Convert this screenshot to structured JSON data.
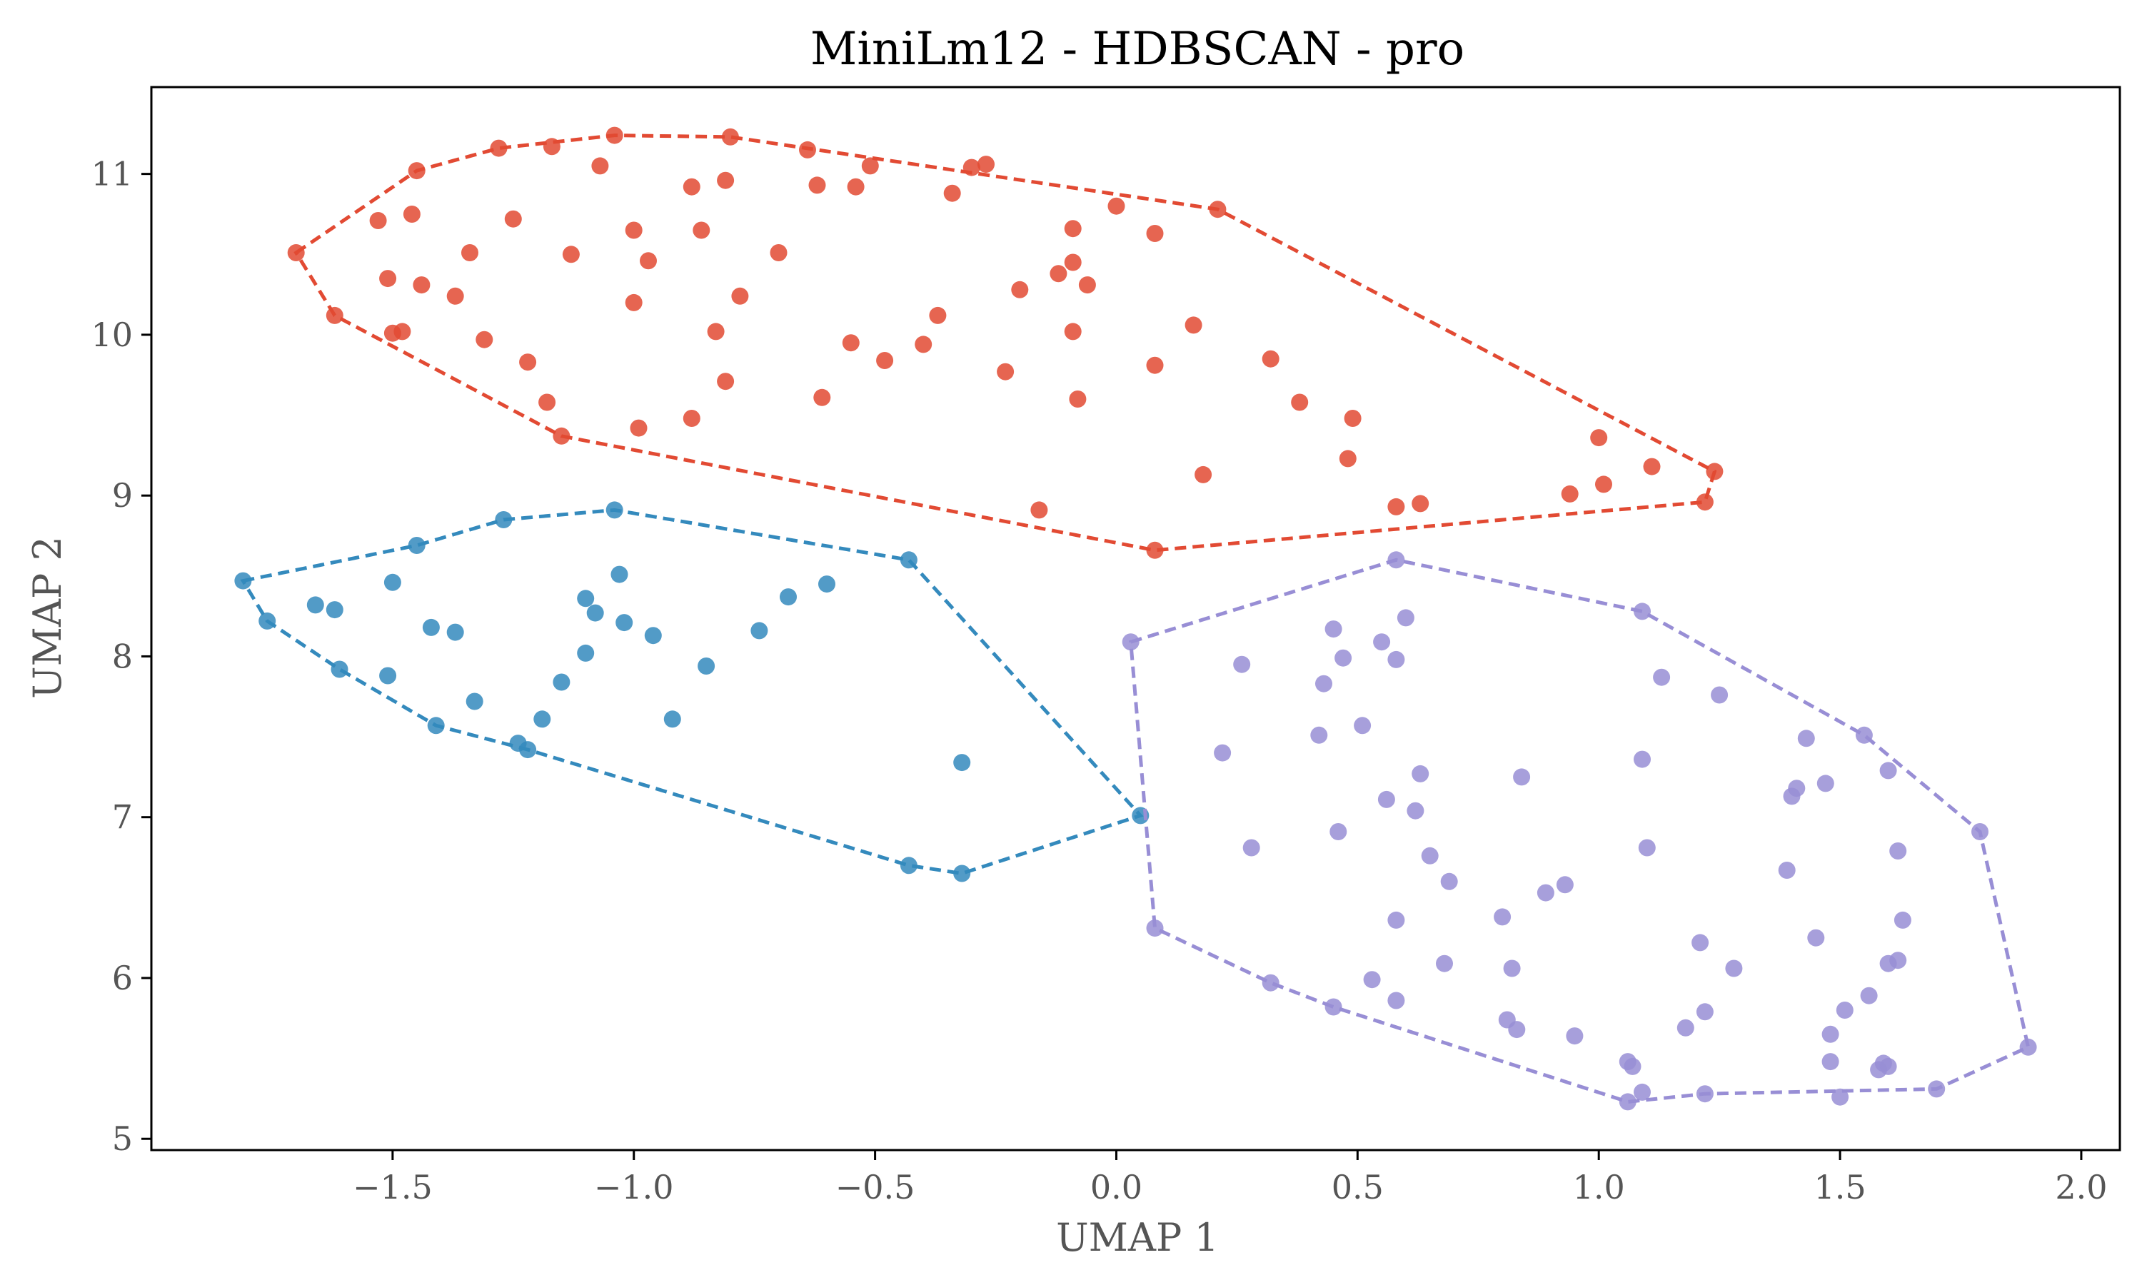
{
  "chart_data": {
    "type": "scatter",
    "title": "MiniLm12 - HDBSCAN - pro",
    "xlabel": "UMAP 1",
    "ylabel": "UMAP 2",
    "xlim": [
      -2.0,
      2.08
    ],
    "ylim": [
      4.93,
      11.54
    ],
    "xticks": [
      -1.5,
      -1.0,
      -0.5,
      0.0,
      0.5,
      1.0,
      1.5,
      2.0
    ],
    "xtick_labels": [
      "−1.5",
      "−1.0",
      "−0.5",
      "0.0",
      "0.5",
      "1.0",
      "1.5",
      "2.0"
    ],
    "yticks": [
      5,
      6,
      7,
      8,
      9,
      10,
      11
    ],
    "ytick_labels": [
      "5",
      "6",
      "7",
      "8",
      "9",
      "10",
      "11"
    ],
    "grid": false,
    "legend": "none",
    "series": [
      {
        "color": "#e24a33",
        "hull": [
          [
            -1.7,
            10.51
          ],
          [
            -1.45,
            11.02
          ],
          [
            -1.28,
            11.16
          ],
          [
            -1.04,
            11.24
          ],
          [
            -0.8,
            11.23
          ],
          [
            0.21,
            10.78
          ],
          [
            1.24,
            9.15
          ],
          [
            1.22,
            8.96
          ],
          [
            0.08,
            8.66
          ],
          [
            -1.15,
            9.37
          ],
          [
            -1.62,
            10.12
          ]
        ],
        "points": [
          [
            -1.7,
            10.51
          ],
          [
            -1.62,
            10.12
          ],
          [
            -1.53,
            10.71
          ],
          [
            -1.51,
            10.35
          ],
          [
            -1.5,
            10.01
          ],
          [
            -1.48,
            10.02
          ],
          [
            -1.46,
            10.75
          ],
          [
            -1.45,
            11.02
          ],
          [
            -1.44,
            10.31
          ],
          [
            -1.37,
            10.24
          ],
          [
            -1.34,
            10.51
          ],
          [
            -1.31,
            9.97
          ],
          [
            -1.28,
            11.16
          ],
          [
            -1.25,
            10.72
          ],
          [
            -1.22,
            9.83
          ],
          [
            -1.18,
            9.58
          ],
          [
            -1.17,
            11.17
          ],
          [
            -1.15,
            9.37
          ],
          [
            -1.13,
            10.5
          ],
          [
            -1.07,
            11.05
          ],
          [
            -1.04,
            11.24
          ],
          [
            -1.0,
            10.65
          ],
          [
            -1.0,
            10.2
          ],
          [
            -0.99,
            9.42
          ],
          [
            -0.97,
            10.46
          ],
          [
            -0.88,
            10.92
          ],
          [
            -0.88,
            9.48
          ],
          [
            -0.86,
            10.65
          ],
          [
            -0.83,
            10.02
          ],
          [
            -0.81,
            10.96
          ],
          [
            -0.81,
            9.71
          ],
          [
            -0.8,
            11.23
          ],
          [
            -0.78,
            10.24
          ],
          [
            -0.7,
            10.51
          ],
          [
            -0.64,
            11.15
          ],
          [
            -0.62,
            10.93
          ],
          [
            -0.61,
            9.61
          ],
          [
            -0.55,
            9.95
          ],
          [
            -0.54,
            10.92
          ],
          [
            -0.51,
            11.05
          ],
          [
            -0.48,
            9.84
          ],
          [
            -0.4,
            9.94
          ],
          [
            -0.37,
            10.12
          ],
          [
            -0.34,
            10.88
          ],
          [
            -0.3,
            11.04
          ],
          [
            -0.27,
            11.06
          ],
          [
            -0.23,
            9.77
          ],
          [
            -0.2,
            10.28
          ],
          [
            -0.16,
            8.91
          ],
          [
            -0.12,
            10.38
          ],
          [
            -0.09,
            10.66
          ],
          [
            -0.09,
            10.45
          ],
          [
            -0.09,
            10.02
          ],
          [
            -0.08,
            9.6
          ],
          [
            -0.06,
            10.31
          ],
          [
            0.0,
            10.8
          ],
          [
            0.08,
            10.63
          ],
          [
            0.08,
            9.81
          ],
          [
            0.08,
            8.66
          ],
          [
            0.16,
            10.06
          ],
          [
            0.18,
            9.13
          ],
          [
            0.21,
            10.78
          ],
          [
            0.32,
            9.85
          ],
          [
            0.38,
            9.58
          ],
          [
            0.48,
            9.23
          ],
          [
            0.49,
            9.48
          ],
          [
            0.58,
            8.93
          ],
          [
            0.63,
            8.95
          ],
          [
            0.94,
            9.01
          ],
          [
            1.0,
            9.36
          ],
          [
            1.01,
            9.07
          ],
          [
            1.11,
            9.18
          ],
          [
            1.22,
            8.96
          ],
          [
            1.24,
            9.15
          ]
        ]
      },
      {
        "color": "#348abd",
        "hull": [
          [
            -1.81,
            8.47
          ],
          [
            -1.45,
            8.69
          ],
          [
            -1.27,
            8.85
          ],
          [
            -1.04,
            8.91
          ],
          [
            -0.43,
            8.6
          ],
          [
            0.05,
            7.01
          ],
          [
            -0.32,
            6.65
          ],
          [
            -0.43,
            6.7
          ],
          [
            -1.22,
            7.42
          ],
          [
            -1.41,
            7.57
          ],
          [
            -1.61,
            7.92
          ],
          [
            -1.76,
            8.22
          ]
        ],
        "points": [
          [
            -1.81,
            8.47
          ],
          [
            -1.76,
            8.22
          ],
          [
            -1.66,
            8.32
          ],
          [
            -1.62,
            8.29
          ],
          [
            -1.61,
            7.92
          ],
          [
            -1.5,
            8.46
          ],
          [
            -1.51,
            7.88
          ],
          [
            -1.45,
            8.69
          ],
          [
            -1.42,
            8.18
          ],
          [
            -1.41,
            7.57
          ],
          [
            -1.37,
            8.15
          ],
          [
            -1.33,
            7.72
          ],
          [
            -1.27,
            8.85
          ],
          [
            -1.24,
            7.46
          ],
          [
            -1.22,
            7.42
          ],
          [
            -1.19,
            7.61
          ],
          [
            -1.15,
            7.84
          ],
          [
            -1.1,
            8.36
          ],
          [
            -1.1,
            8.02
          ],
          [
            -1.08,
            8.27
          ],
          [
            -1.04,
            8.91
          ],
          [
            -1.03,
            8.51
          ],
          [
            -1.02,
            8.21
          ],
          [
            -0.96,
            8.13
          ],
          [
            -0.92,
            7.61
          ],
          [
            -0.85,
            7.94
          ],
          [
            -0.74,
            8.16
          ],
          [
            -0.68,
            8.37
          ],
          [
            -0.6,
            8.45
          ],
          [
            -0.43,
            8.6
          ],
          [
            -0.43,
            6.7
          ],
          [
            -0.32,
            7.34
          ],
          [
            -0.32,
            6.65
          ],
          [
            0.05,
            7.01
          ]
        ]
      },
      {
        "color": "#988ed5",
        "hull": [
          [
            0.03,
            8.09
          ],
          [
            0.58,
            8.6
          ],
          [
            1.09,
            8.28
          ],
          [
            1.55,
            7.51
          ],
          [
            1.79,
            6.91
          ],
          [
            1.89,
            5.57
          ],
          [
            1.7,
            5.31
          ],
          [
            1.22,
            5.28
          ],
          [
            1.06,
            5.23
          ],
          [
            0.45,
            5.82
          ],
          [
            0.32,
            5.97
          ],
          [
            0.08,
            6.31
          ]
        ],
        "points": [
          [
            0.03,
            8.09
          ],
          [
            0.08,
            6.31
          ],
          [
            0.22,
            7.4
          ],
          [
            0.26,
            7.95
          ],
          [
            0.28,
            6.81
          ],
          [
            0.32,
            5.97
          ],
          [
            0.42,
            7.51
          ],
          [
            0.43,
            7.83
          ],
          [
            0.45,
            5.82
          ],
          [
            0.45,
            8.17
          ],
          [
            0.46,
            6.91
          ],
          [
            0.47,
            7.99
          ],
          [
            0.51,
            7.57
          ],
          [
            0.53,
            5.99
          ],
          [
            0.55,
            8.09
          ],
          [
            0.56,
            7.11
          ],
          [
            0.58,
            8.6
          ],
          [
            0.58,
            7.98
          ],
          [
            0.58,
            6.36
          ],
          [
            0.58,
            5.86
          ],
          [
            0.6,
            8.24
          ],
          [
            0.62,
            7.04
          ],
          [
            0.63,
            7.27
          ],
          [
            0.65,
            6.76
          ],
          [
            0.68,
            6.09
          ],
          [
            0.69,
            6.6
          ],
          [
            0.8,
            6.38
          ],
          [
            0.81,
            5.74
          ],
          [
            0.82,
            6.06
          ],
          [
            0.83,
            5.68
          ],
          [
            0.84,
            7.25
          ],
          [
            0.89,
            6.53
          ],
          [
            0.93,
            6.58
          ],
          [
            0.95,
            5.64
          ],
          [
            1.06,
            5.48
          ],
          [
            1.06,
            5.23
          ],
          [
            1.07,
            5.45
          ],
          [
            1.09,
            5.29
          ],
          [
            1.09,
            7.36
          ],
          [
            1.09,
            8.28
          ],
          [
            1.1,
            6.81
          ],
          [
            1.13,
            7.87
          ],
          [
            1.18,
            5.69
          ],
          [
            1.21,
            6.22
          ],
          [
            1.22,
            5.79
          ],
          [
            1.22,
            5.28
          ],
          [
            1.25,
            7.76
          ],
          [
            1.28,
            6.06
          ],
          [
            1.39,
            6.67
          ],
          [
            1.4,
            7.13
          ],
          [
            1.41,
            7.18
          ],
          [
            1.43,
            7.49
          ],
          [
            1.45,
            6.25
          ],
          [
            1.47,
            7.21
          ],
          [
            1.48,
            5.65
          ],
          [
            1.48,
            5.48
          ],
          [
            1.5,
            5.26
          ],
          [
            1.51,
            5.8
          ],
          [
            1.55,
            7.51
          ],
          [
            1.56,
            5.89
          ],
          [
            1.58,
            5.43
          ],
          [
            1.59,
            5.47
          ],
          [
            1.6,
            5.45
          ],
          [
            1.6,
            7.29
          ],
          [
            1.6,
            6.09
          ],
          [
            1.62,
            6.11
          ],
          [
            1.62,
            6.79
          ],
          [
            1.63,
            6.36
          ],
          [
            1.7,
            5.31
          ],
          [
            1.79,
            6.91
          ],
          [
            1.89,
            5.57
          ]
        ]
      }
    ]
  }
}
